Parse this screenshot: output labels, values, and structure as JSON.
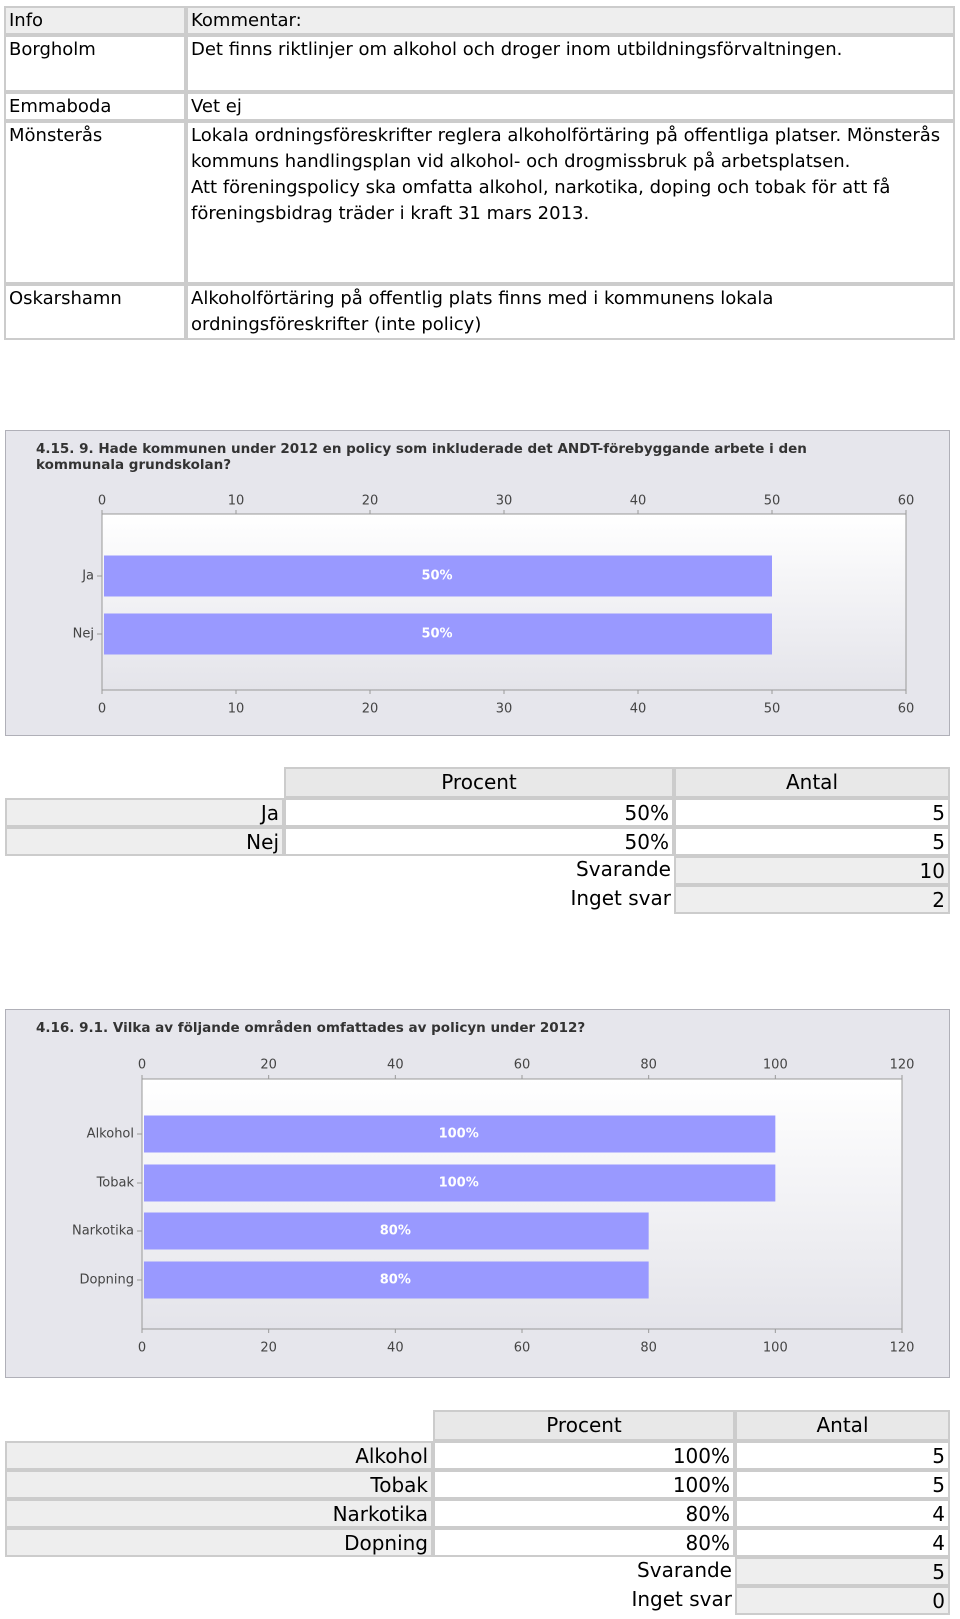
{
  "comments": {
    "headers": [
      "Info",
      "Kommentar:"
    ],
    "rows": [
      {
        "info": "Borgholm",
        "comment": [
          "Det finns riktlinjer om alkohol och droger inom utbildningsförvaltningen."
        ]
      },
      {
        "info": "Emmaboda",
        "comment": [
          "Vet ej"
        ]
      },
      {
        "info": "Mönsterås",
        "comment": [
          "Lokala ordningsföreskrifter reglera alkoholförtäring på offentliga platser. Mönsterås kommuns handlingsplan vid alkohol- och drogmissbruk på arbetsplatsen.",
          "Att föreningspolicy ska omfatta alkohol, narkotika, doping och tobak för att få föreningsbidrag träder i kraft 31 mars 2013."
        ]
      },
      {
        "info": "Oskarshamn",
        "comment": [
          "Alkoholförtäring på offentlig plats finns med i kommunens lokala ordningsföreskrifter (inte policy)"
        ]
      }
    ]
  },
  "chart_data": [
    {
      "type": "bar",
      "orientation": "horizontal",
      "title": "4.15. 9. Hade kommunen under 2012 en policy som inkluderade det ANDT-förebyggande arbete i den kommunala grundskolan?",
      "categories": [
        "Ja",
        "Nej"
      ],
      "values": [
        50,
        50
      ],
      "value_labels": [
        "50%",
        "50%"
      ],
      "color": "#9999ff",
      "xlim": [
        0,
        60
      ],
      "xticks": [
        0,
        10,
        20,
        30,
        40,
        50,
        60
      ]
    },
    {
      "type": "bar",
      "orientation": "horizontal",
      "title": "4.16. 9.1. Vilka av följande områden omfattades av policyn under 2012?",
      "categories": [
        "Alkohol",
        "Tobak",
        "Narkotika",
        "Dopning"
      ],
      "values": [
        100,
        100,
        80,
        80
      ],
      "value_labels": [
        "100%",
        "100%",
        "80%",
        "80%"
      ],
      "color": "#9999ff",
      "xlim": [
        0,
        120
      ],
      "xticks": [
        0,
        20,
        40,
        60,
        80,
        100,
        120
      ]
    }
  ],
  "tables": [
    {
      "headers": [
        "Procent",
        "Antal"
      ],
      "rows": [
        [
          "Ja",
          "50%",
          5
        ],
        [
          "Nej",
          "50%",
          5
        ]
      ],
      "summary": [
        [
          "Svarande",
          10
        ],
        [
          "Inget svar",
          2
        ]
      ]
    },
    {
      "headers": [
        "Procent",
        "Antal"
      ],
      "rows": [
        [
          "Alkohol",
          "100%",
          5
        ],
        [
          "Tobak",
          "100%",
          5
        ],
        [
          "Narkotika",
          "80%",
          4
        ],
        [
          "Dopning",
          "80%",
          4
        ]
      ],
      "summary": [
        [
          "Svarande",
          5
        ],
        [
          "Inget svar",
          0
        ]
      ]
    }
  ]
}
